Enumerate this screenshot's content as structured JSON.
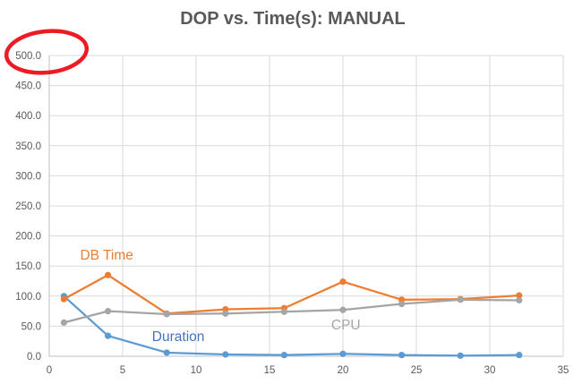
{
  "title": "DOP vs. Time(s): MANUAL",
  "chart_data": {
    "type": "line",
    "title": "DOP vs. Time(s): MANUAL",
    "xlabel": "",
    "ylabel": "",
    "x": [
      1,
      4,
      8,
      12,
      16,
      20,
      24,
      28,
      32
    ],
    "series": [
      {
        "name": "Duration",
        "color": "#5B9BD5",
        "values": [
          100,
          34,
          6,
          3,
          2,
          4,
          2,
          1,
          2
        ]
      },
      {
        "name": "DB Time",
        "color": "#ED7D31",
        "values": [
          95,
          135,
          71,
          78,
          80,
          124,
          94,
          95,
          101
        ]
      },
      {
        "name": "CPU",
        "color": "#A5A5A5",
        "values": [
          56,
          75,
          70,
          71,
          74,
          77,
          87,
          94,
          93
        ]
      }
    ],
    "xlim": [
      0,
      35
    ],
    "xtick_step": 5,
    "ylim": [
      0,
      500
    ],
    "ytick_step": 50,
    "y_tick_decimals": 1,
    "grid": true,
    "legend": "inline-series-labels",
    "series_labels": [
      {
        "text": "DB Time",
        "x": 2.1,
        "y": 168,
        "color": "#ED7D31"
      },
      {
        "text": "Duration",
        "x": 7.0,
        "y": 33,
        "color": "#4472C4"
      },
      {
        "text": "CPU",
        "x": 19.2,
        "y": 52,
        "color": "#A5A5A5"
      }
    ],
    "annotation": {
      "type": "ellipse",
      "target_label": "500.0",
      "cx": 52,
      "cy": 58,
      "rx": 45,
      "ry": 23,
      "rotation": -6,
      "color": "#ED1C24",
      "stroke_width": 4.5
    }
  },
  "style_colors": {
    "tick_label": "#595959",
    "gridline": "#D9D9D9",
    "axis_line": "#BFBFBF",
    "title": "#595959"
  }
}
